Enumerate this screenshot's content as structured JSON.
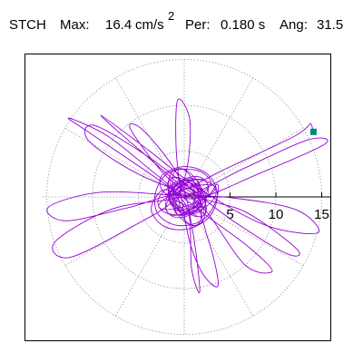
{
  "header": {
    "station": "STCH",
    "max_label": "Max:",
    "max_value": "16.4",
    "max_unit": "cm/s",
    "max_unit_sup": "2",
    "per_label": "Per:",
    "per_value": "0.180 s",
    "ang_label": "Ang:",
    "ang_value": "31.5"
  },
  "chart_data": {
    "type": "line",
    "title": "",
    "xlabel": "",
    "ylabel": "",
    "units": "cm/s2",
    "max_amplitude": 16.4,
    "period_s": 0.18,
    "angle_deg": 31.5,
    "grid": "polar dotted circles and radial lines every 30 degrees",
    "ring_radii": [
      5,
      10,
      15
    ],
    "x_ticks": [
      5,
      10,
      15
    ],
    "x_tick_labels": [
      "5",
      "10",
      "15"
    ],
    "xlim": [
      -16,
      16
    ],
    "ylim": [
      -14,
      14
    ],
    "end_marker": {
      "x": 14.1,
      "y": 7.1
    },
    "series": [
      {
        "values_xy": [
          [
            0,
            0
          ],
          [
            1.2,
            0.6
          ],
          [
            -0.8,
            1.4
          ],
          [
            -1.6,
            -0.4
          ],
          [
            0.4,
            -1.6
          ],
          [
            1.8,
            0.2
          ],
          [
            2.9,
            1.6
          ],
          [
            1.4,
            2.9
          ],
          [
            -1.6,
            2.7
          ],
          [
            -3.1,
            0.6
          ],
          [
            -2.9,
            -1.8
          ],
          [
            -0.8,
            -3.1
          ],
          [
            1.9,
            -2.6
          ],
          [
            3.4,
            -0.6
          ],
          [
            3.6,
            1.4
          ],
          [
            1.8,
            0.1
          ],
          [
            -4.8,
            2.4
          ],
          [
            -10.4,
            6.1
          ],
          [
            -9.8,
            7.8
          ],
          [
            -4.1,
            4.5
          ],
          [
            1.2,
            0.5
          ],
          [
            5.6,
            -2.8
          ],
          [
            11.2,
            -6.2
          ],
          [
            12.3,
            -5.7
          ],
          [
            6.8,
            -1.7
          ],
          [
            1.1,
            0.3
          ],
          [
            -4.5,
            4.8
          ],
          [
            -9.1,
            8.9
          ],
          [
            -3.9,
            5.1
          ],
          [
            1.6,
            0.9
          ],
          [
            8.9,
            -3.1
          ],
          [
            14.6,
            -3.9
          ],
          [
            12.2,
            -1.4
          ],
          [
            5.2,
            -0.1
          ],
          [
            -1.1,
            0.2
          ],
          [
            -9.2,
            0.5
          ],
          [
            -14.8,
            -1.1
          ],
          [
            -12.9,
            -2.6
          ],
          [
            -6.2,
            -1.2
          ],
          [
            0.3,
            0.2
          ],
          [
            2.6,
            -4.6
          ],
          [
            3.7,
            -9.6
          ],
          [
            2.1,
            -8.5
          ],
          [
            0.6,
            -4.9
          ],
          [
            -0.4,
            0.6
          ],
          [
            -0.9,
            5.8
          ],
          [
            -0.7,
            10.6
          ],
          [
            0.6,
            8.4
          ],
          [
            0.3,
            3.1
          ],
          [
            -1.2,
            -0.4
          ],
          [
            -5.6,
            -3.2
          ],
          [
            -12.5,
            -6.6
          ],
          [
            -14.1,
            -4.9
          ],
          [
            -7.8,
            -1.3
          ],
          [
            0.1,
            0.1
          ],
          [
            6.7,
            3.2
          ],
          [
            13.4,
            6.2
          ],
          [
            15.4,
            5.8
          ],
          [
            8.3,
            2.6
          ],
          [
            0.9,
            -0.2
          ],
          [
            -2.6,
            2.1
          ],
          [
            -8.3,
            6.6
          ],
          [
            -12.6,
            8.6
          ],
          [
            -10.2,
            6.9
          ],
          [
            -2.4,
            1.6
          ],
          [
            2.5,
            -2.1
          ],
          [
            7.2,
            -5.6
          ],
          [
            9.6,
            -8.1
          ],
          [
            6.6,
            -7.4
          ],
          [
            2.1,
            -1.2
          ],
          [
            -2.3,
            2.6
          ],
          [
            -5.9,
            7.5
          ],
          [
            -4.4,
            7.2
          ],
          [
            -0.6,
            2.2
          ],
          [
            0.9,
            -3.6
          ],
          [
            1.7,
            -10.3
          ],
          [
            0.8,
            -7.8
          ],
          [
            0.4,
            -1.4
          ],
          [
            -2.1,
            0.8
          ],
          [
            -3.6,
            -1.3
          ],
          [
            -2.2,
            -3.2
          ],
          [
            0.4,
            -3.5
          ],
          [
            2.8,
            -2.1
          ],
          [
            3.6,
            0.4
          ],
          [
            2.4,
            2.6
          ],
          [
            -0.2,
            3.3
          ],
          [
            -2.6,
            2.1
          ],
          [
            -1.4,
            0.3
          ],
          [
            4.6,
            3.1
          ],
          [
            11.6,
            6.4
          ],
          [
            13.4,
            7.6
          ],
          [
            13.8,
            8.0
          ],
          [
            14.1,
            7.1
          ]
        ]
      }
    ]
  }
}
